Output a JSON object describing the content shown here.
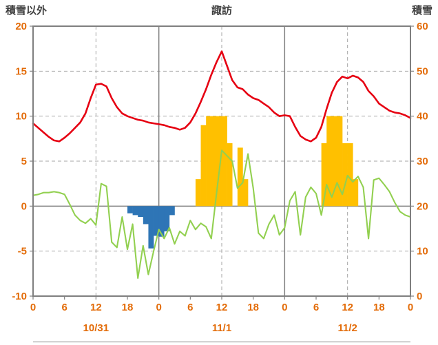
{
  "chart_data": {
    "type": "combo",
    "title": "諏訪",
    "left_axis": {
      "title": "積雪以外",
      "min": -10,
      "max": 20,
      "tick_step": 5,
      "tick_labels": [
        "20",
        "15",
        "10",
        "5",
        "0",
        "-5",
        "-10"
      ],
      "tick_values": [
        20,
        15,
        10,
        5,
        0,
        -5,
        -10
      ]
    },
    "right_axis": {
      "title": "積雪",
      "min": 0,
      "max": 60,
      "tick_step": 10,
      "tick_labels": [
        "60",
        "50",
        "40",
        "30",
        "20",
        "10",
        "0"
      ],
      "tick_values": [
        60,
        50,
        40,
        30,
        20,
        10,
        0
      ]
    },
    "x_axis": {
      "unit": "hour",
      "total_hours": 72,
      "tick_hours": [
        0,
        6,
        12,
        18,
        24,
        30,
        36,
        42,
        48,
        54,
        60,
        66,
        72
      ],
      "tick_labels": [
        "0",
        "6",
        "12",
        "18",
        "0",
        "6",
        "12",
        "18",
        "0",
        "6",
        "12",
        "18",
        "0"
      ],
      "date_labels": [
        {
          "text": "10/31",
          "center_hour": 12
        },
        {
          "text": "11/1",
          "center_hour": 36
        },
        {
          "text": "11/2",
          "center_hour": 60
        }
      ],
      "solid_grid_hours": [
        24,
        48
      ],
      "dashed_grid_hours": [
        12,
        36,
        60
      ]
    },
    "series": [
      {
        "name": "orange-bars",
        "type": "bar",
        "axis": "left",
        "color": "#FFC000",
        "bars": [
          {
            "hour": 31,
            "value": 3
          },
          {
            "hour": 32,
            "value": 9
          },
          {
            "hour": 33,
            "value": 10
          },
          {
            "hour": 34,
            "value": 10
          },
          {
            "hour": 35,
            "value": 10
          },
          {
            "hour": 36,
            "value": 10
          },
          {
            "hour": 37,
            "value": 7
          },
          {
            "hour": 39,
            "value": 6.5
          },
          {
            "hour": 40,
            "value": 3
          },
          {
            "hour": 55,
            "value": 7
          },
          {
            "hour": 56,
            "value": 10
          },
          {
            "hour": 57,
            "value": 10
          },
          {
            "hour": 58,
            "value": 10
          },
          {
            "hour": 59,
            "value": 7
          },
          {
            "hour": 60,
            "value": 7
          },
          {
            "hour": 61,
            "value": 3
          }
        ]
      },
      {
        "name": "blue-bars",
        "type": "bar",
        "axis": "left",
        "color": "#2E75B6",
        "bars": [
          {
            "hour": 18,
            "value": -0.8
          },
          {
            "hour": 19,
            "value": -1.0
          },
          {
            "hour": 20,
            "value": -1.2
          },
          {
            "hour": 21,
            "value": -2.0
          },
          {
            "hour": 22,
            "value": -4.7
          },
          {
            "hour": 23,
            "value": -3.3
          },
          {
            "hour": 24,
            "value": -3.4
          },
          {
            "hour": 25,
            "value": -2.8
          },
          {
            "hour": 26,
            "value": -1.0
          }
        ]
      },
      {
        "name": "green-line",
        "type": "line",
        "axis": "left",
        "color": "#92D050",
        "values": [
          1.2,
          1.3,
          1.5,
          1.5,
          1.6,
          1.5,
          1.3,
          0.2,
          -1.0,
          -1.6,
          -1.9,
          -1.4,
          -2.1,
          2.5,
          2.2,
          -4.0,
          -4.6,
          -1.2,
          -4.8,
          -2.0,
          -8.0,
          -4.4,
          -7.6,
          -5.0,
          -2.6,
          -3.6,
          -2.4,
          -4.2,
          -2.8,
          -3.3,
          -1.6,
          -2.6,
          -1.9,
          -2.3,
          -3.6,
          1.4,
          6.2,
          5.6,
          5.0,
          2.0,
          2.6,
          5.8,
          2.0,
          -3.0,
          -3.6,
          -2.0,
          -1.0,
          -3.2,
          -2.4,
          0.6,
          1.6,
          -3.2,
          1.0,
          2.1,
          1.4,
          -1.0,
          2.4,
          1.0,
          2.6,
          1.3,
          3.4,
          2.7,
          3.3,
          2.1,
          -3.6,
          2.9,
          3.1,
          2.4,
          1.6,
          0.4,
          -0.6,
          -1.0,
          -1.2
        ]
      },
      {
        "name": "red-line",
        "type": "line",
        "axis": "left",
        "color": "#E60012",
        "values": [
          9.2,
          8.7,
          8.2,
          7.7,
          7.3,
          7.2,
          7.6,
          8.1,
          8.7,
          9.3,
          10.3,
          12.0,
          13.5,
          13.6,
          13.3,
          12.0,
          11.0,
          10.3,
          10.0,
          9.8,
          9.6,
          9.5,
          9.3,
          9.2,
          9.1,
          9.0,
          8.8,
          8.7,
          8.5,
          8.7,
          9.3,
          10.3,
          11.6,
          13.0,
          14.6,
          16.0,
          17.2,
          15.6,
          14.0,
          13.2,
          13.0,
          12.4,
          12.0,
          11.8,
          11.4,
          11.0,
          10.4,
          10.0,
          10.1,
          10.0,
          8.8,
          7.8,
          7.4,
          7.2,
          7.6,
          8.8,
          10.8,
          12.6,
          13.8,
          14.4,
          14.2,
          14.5,
          14.3,
          13.8,
          12.8,
          12.2,
          11.4,
          11.0,
          10.6,
          10.4,
          10.3,
          10.1,
          9.8
        ]
      }
    ],
    "colors": {
      "red_line": "#E60012",
      "green_line": "#92D050",
      "orange_bar": "#FFC000",
      "blue_bar": "#2E75B6",
      "grid": "#A6A6A6",
      "axis_border": "#7F7F7F",
      "zero_line": "#7F7F7F",
      "tick_label": "#E36C09",
      "title_text": "#3F3F3F",
      "bottom_line": "#A6A6A6"
    },
    "layout_hints": {
      "grid": "dashed horizontal at 5-unit steps, dashed vertical at noons, solid vertical at midnights",
      "legend": "none"
    }
  }
}
